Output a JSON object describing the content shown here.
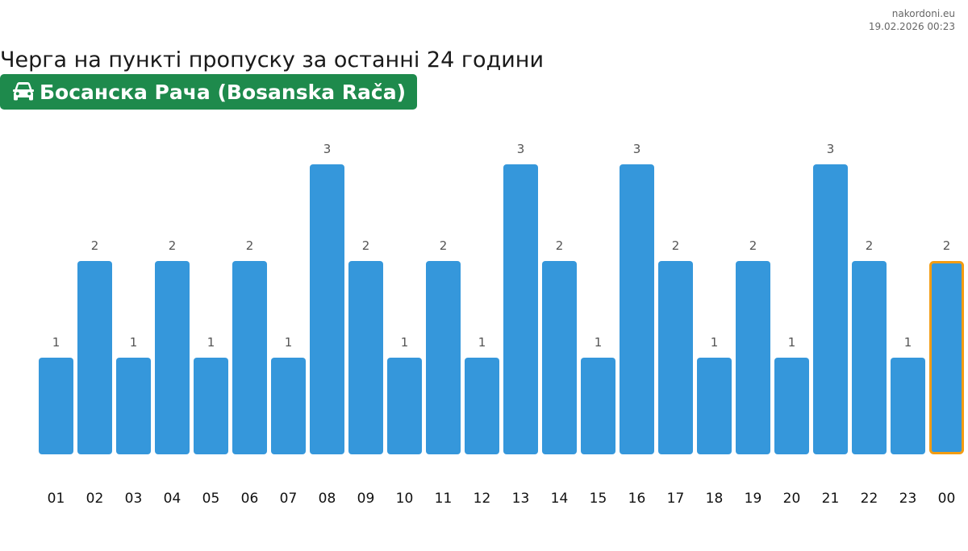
{
  "source": {
    "site": "nakordoni.eu",
    "timestamp": "19.02.2026 00:23"
  },
  "title": "Черга на пункті пропуску за останні 24 години",
  "checkpoint": {
    "name": "Босанска Рача (Bosanska Rača)",
    "icon": "car-icon",
    "color": "#1e8a4c"
  },
  "colors": {
    "bar": "#3597db",
    "highlight_outline": "#f39c12",
    "value_label": "#555555",
    "tick_label": "#111111"
  },
  "chart_data": {
    "type": "bar",
    "categories": [
      "01",
      "02",
      "03",
      "04",
      "05",
      "06",
      "07",
      "08",
      "09",
      "10",
      "11",
      "12",
      "13",
      "14",
      "15",
      "16",
      "17",
      "18",
      "19",
      "20",
      "21",
      "22",
      "23",
      "00"
    ],
    "values": [
      1,
      2,
      1,
      2,
      1,
      2,
      1,
      3,
      2,
      1,
      2,
      1,
      3,
      2,
      1,
      3,
      2,
      1,
      2,
      1,
      3,
      2,
      1,
      2
    ],
    "highlighted_category": "00",
    "ylim": [
      0,
      3
    ],
    "grid": false,
    "legend": "none",
    "data_labels": true
  }
}
